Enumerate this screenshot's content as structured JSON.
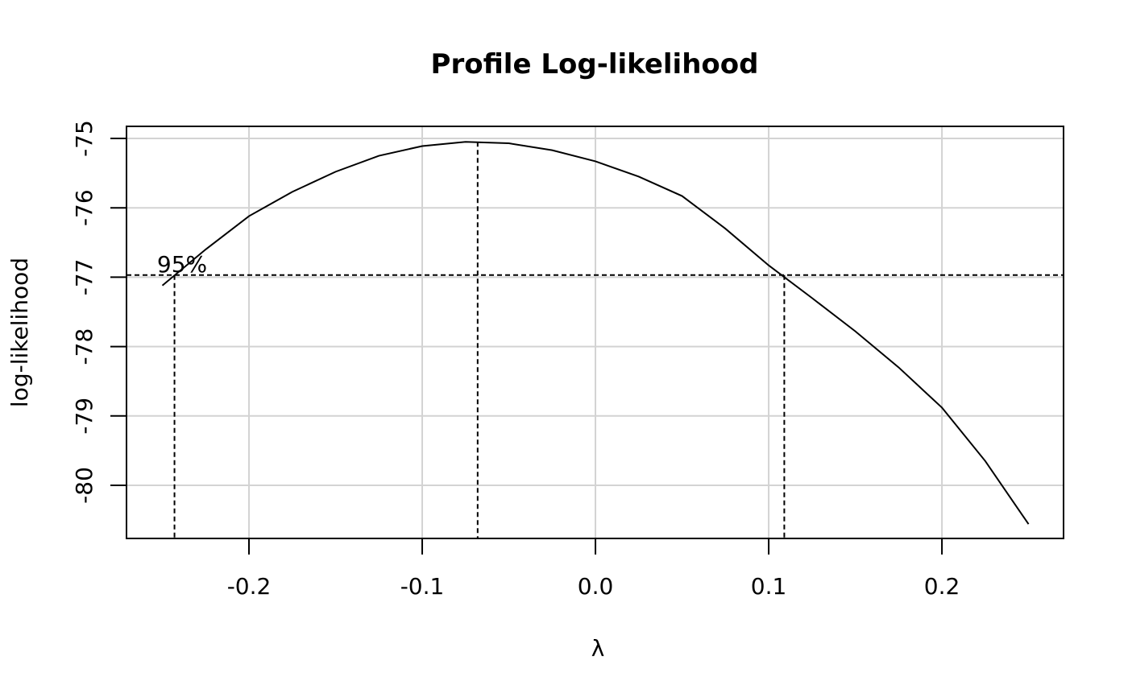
{
  "chart_data": {
    "type": "line",
    "title": "Profile Log-likelihood",
    "xlabel": "λ",
    "ylabel": "log-likelihood",
    "x": [
      -0.25,
      -0.225,
      -0.2,
      -0.175,
      -0.15,
      -0.125,
      -0.1,
      -0.075,
      -0.05,
      -0.025,
      0,
      0.025,
      0.05,
      0.075,
      0.1,
      0.125,
      0.15,
      0.175,
      0.2,
      0.225,
      0.25
    ],
    "values": [
      -77.12,
      -76.6,
      -76.12,
      -75.77,
      -75.48,
      -75.25,
      -75.11,
      -75.05,
      -75.07,
      -75.17,
      -75.33,
      -75.55,
      -75.83,
      -76.3,
      -76.83,
      -77.3,
      -77.78,
      -78.3,
      -78.88,
      -79.65,
      -80.56
    ],
    "color": "#000000",
    "xlim": [
      -0.2707,
      0.2702
    ],
    "ylim": [
      -80.766,
      -74.826
    ],
    "xticks": [
      -0.2,
      -0.1,
      {
        "value": 0,
        "label": "0.0"
      },
      0.1,
      0.2
    ],
    "yticks": [
      -75,
      -76,
      -77,
      -78,
      -79,
      -80
    ],
    "grid": true,
    "reference_lines": {
      "hline": -76.97,
      "vlines": [
        -0.243,
        -0.068,
        0.109
      ]
    },
    "annotation": "95%"
  }
}
